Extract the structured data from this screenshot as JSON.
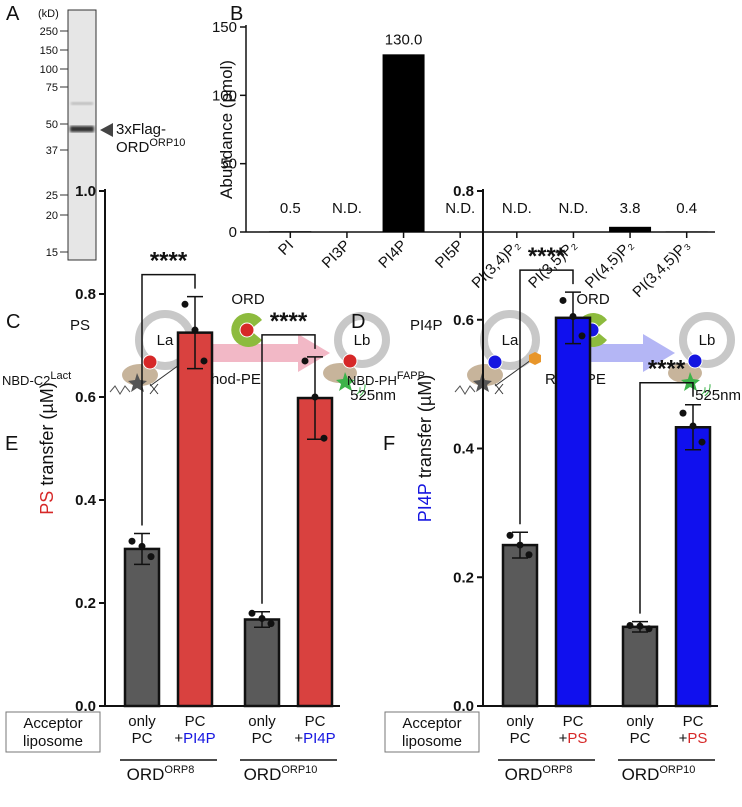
{
  "gel": {
    "label": "A",
    "unit": "(kD)",
    "markers": [
      250,
      150,
      100,
      75,
      50,
      37,
      25,
      20,
      15
    ],
    "band_label_1": "3xFlag-",
    "band_label_2": "ORD",
    "band_label_sup": "ORP10"
  },
  "schemes": [
    {
      "label": "C",
      "lipid": "PS",
      "lipid_color": "#d62828",
      "donor": "La",
      "acceptor": "Lb",
      "protein": "ORD",
      "arrow_color": "#f2b8c6",
      "sensor": "NBD-C2",
      "sensor_sup": "Lact",
      "quencher": "Rhod-PE",
      "quencher_color": "#e8962a",
      "emission": "525nm"
    },
    {
      "label": "D",
      "lipid": "PI4P",
      "lipid_color": "#1515e0",
      "donor": "La",
      "acceptor": "Lb",
      "protein": "ORD",
      "arrow_color": "#b4b6f5",
      "sensor": "NBD-PH",
      "sensor_sup": "FAPP",
      "quencher": "Rhod-PE",
      "quencher_color": "#e8962a",
      "emission": "525nm"
    }
  ],
  "chart_data": [
    {
      "type": "bar",
      "label": "B",
      "ylabel": "Abundance (pmol)",
      "categories": [
        "PI",
        "PI3P",
        "PI4P",
        "PI5P",
        "PI(3,4)P₂",
        "PI(3,5)P₂",
        "PI(4,5)P₂",
        "PI(3,4,5)P₃"
      ],
      "values": [
        0.5,
        null,
        130,
        null,
        null,
        null,
        3.8,
        0.4
      ],
      "value_labels": [
        "0.5",
        "N.D.",
        "130.0",
        "N.D.",
        "N.D.",
        "N.D.",
        "3.8",
        "0.4"
      ],
      "color": "#000000",
      "ylim": [
        0,
        150
      ],
      "yticks": [
        0,
        50,
        100,
        150
      ]
    },
    {
      "type": "errbar",
      "label": "E",
      "ylabel_highlight": "PS",
      "ylabel_highlight_color": "#d62828",
      "ylabel": "transfer (µM)",
      "categories": [
        "only PC",
        "PC +PI4P",
        "only PC",
        "PC +PI4P"
      ],
      "highlight_color": "#1515e0",
      "values": [
        0.305,
        0.725,
        0.168,
        0.598
      ],
      "errors": [
        0.03,
        0.07,
        0.015,
        0.08
      ],
      "points": [
        [
          0.32,
          0.29,
          0.31
        ],
        [
          0.78,
          0.67,
          0.73
        ],
        [
          0.18,
          0.16,
          0.17
        ],
        [
          0.67,
          0.52,
          0.6
        ]
      ],
      "colors": [
        "#5a5a5a",
        "#d9413f",
        "#5a5a5a",
        "#d9413f"
      ],
      "ylim": [
        0,
        1.0
      ],
      "yticks": [
        {
          "value": 0,
          "label": "0.0"
        },
        0.2,
        0.4,
        0.6,
        0.8,
        {
          "value": 1,
          "label": "1.0"
        }
      ],
      "significance": [
        {
          "from": 0,
          "to": 1,
          "label": "****"
        },
        {
          "from": 2,
          "to": 3,
          "label": "****"
        }
      ],
      "row_label_1": "Acceptor",
      "row_label_2": "liposome",
      "groups": [
        {
          "name": "ORD",
          "sup": "ORP8"
        },
        {
          "name": "ORD",
          "sup": "ORP10"
        }
      ]
    },
    {
      "type": "errbar",
      "label": "F",
      "ylabel_highlight": "PI4P",
      "ylabel_highlight_color": "#1515e0",
      "ylabel": "transfer (µM)",
      "categories": [
        "only PC",
        "PC +PS",
        "only PC",
        "PC +PS"
      ],
      "highlight_color": "#d62828",
      "values": [
        0.25,
        0.603,
        0.123,
        0.433
      ],
      "errors": [
        0.02,
        0.04,
        0.008,
        0.035
      ],
      "points": [
        [
          0.265,
          0.235,
          0.25
        ],
        [
          0.63,
          0.575,
          0.605
        ],
        [
          0.125,
          0.12,
          0.124
        ],
        [
          0.455,
          0.41,
          0.435
        ]
      ],
      "colors": [
        "#5a5a5a",
        "#1010ee",
        "#5a5a5a",
        "#1010ee"
      ],
      "ylim": [
        0,
        0.8
      ],
      "yticks": [
        {
          "value": 0,
          "label": "0.0"
        },
        0.2,
        0.4,
        0.6,
        0.8
      ],
      "significance": [
        {
          "from": 0,
          "to": 1,
          "label": "****"
        },
        {
          "from": 2,
          "to": 3,
          "label": "****"
        }
      ],
      "row_label_1": "Acceptor",
      "row_label_2": "liposome",
      "groups": [
        {
          "name": "ORD",
          "sup": "ORP8"
        },
        {
          "name": "ORD",
          "sup": "ORP10"
        }
      ]
    }
  ]
}
